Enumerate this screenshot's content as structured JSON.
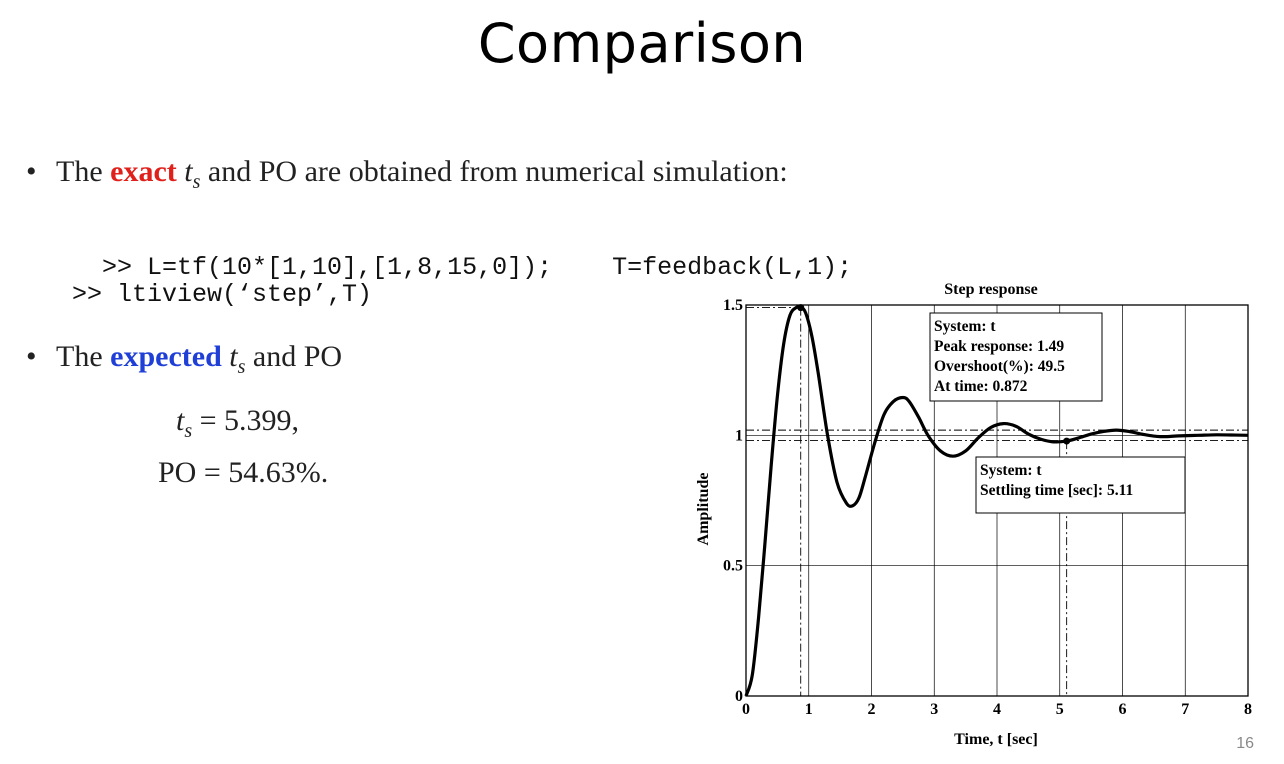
{
  "slide": {
    "title": "Comparison",
    "page_number": "16"
  },
  "bullets": {
    "b1": {
      "prefix": "The ",
      "keyword": "exact",
      "keyword_color": "#e0201a",
      "t_sym": "t",
      "t_sub": "s",
      "suffix": " and PO are obtained from numerical simulation:"
    },
    "b2": {
      "prefix": "The ",
      "keyword": "expected",
      "keyword_color": "#1f3fd6",
      "t_sym": "t",
      "t_sub": "s",
      "suffix": " and PO"
    }
  },
  "code": {
    "line1a": ">> L=tf(10*[1,10],[1,8,15,0]);",
    "line1b": "T=feedback(L,1);",
    "line2": ">> ltiview(‘step’,T)"
  },
  "formulas": {
    "ts_sym": "t",
    "ts_sub": "s",
    "ts_value": " = 5.399,",
    "po_label": "PO",
    "po_value": " = 54.63%."
  },
  "chart_data": {
    "type": "line",
    "title": "Step response",
    "xlabel": "Time, t [sec]",
    "ylabel": "Amplitude",
    "xlim": [
      0,
      8
    ],
    "ylim": [
      0,
      1.5
    ],
    "xticks": [
      0,
      1,
      2,
      3,
      4,
      5,
      6,
      7,
      8
    ],
    "yticks": [
      0,
      0.5,
      1,
      1.5
    ],
    "ytick_labels": [
      "0",
      "0.5",
      "1",
      "1.5"
    ],
    "grid": true,
    "series": [
      {
        "x": [
          0,
          0.1,
          0.2,
          0.3,
          0.4,
          0.5,
          0.6,
          0.7,
          0.8,
          0.872,
          0.95,
          1.05,
          1.15,
          1.3,
          1.45,
          1.6,
          1.7,
          1.8,
          1.9,
          2.05,
          2.2,
          2.35,
          2.5,
          2.6,
          2.75,
          2.9,
          3.1,
          3.3,
          3.5,
          3.7,
          3.9,
          4.1,
          4.3,
          4.5,
          4.7,
          4.9,
          5.11,
          5.3,
          5.5,
          5.7,
          5.9,
          6.1,
          6.3,
          6.6,
          6.9,
          7.2,
          7.5,
          7.8,
          8.0
        ],
        "y": [
          0,
          0.08,
          0.3,
          0.58,
          0.88,
          1.15,
          1.35,
          1.46,
          1.49,
          1.49,
          1.47,
          1.38,
          1.24,
          1.0,
          0.82,
          0.74,
          0.73,
          0.76,
          0.84,
          0.97,
          1.08,
          1.13,
          1.145,
          1.13,
          1.07,
          1.0,
          0.94,
          0.92,
          0.94,
          0.99,
          1.03,
          1.045,
          1.035,
          1.005,
          0.985,
          0.975,
          0.978,
          0.99,
          1.005,
          1.015,
          1.02,
          1.015,
          1.005,
          0.995,
          0.998,
          1.0,
          1.002,
          1.001,
          1.0
        ]
      }
    ],
    "settling_band": [
      0.98,
      1.02
    ],
    "markers": {
      "peak": {
        "x": 0.872,
        "y": 1.49
      },
      "settling": {
        "x": 5.11,
        "y": 0.978
      }
    },
    "annotations": [
      {
        "lines": [
          "System: t",
          "Peak response: 1.49",
          "Overshoot(%): 49.5",
          "At time: 0.872"
        ]
      },
      {
        "lines": [
          "System: t",
          "Settling time [sec]: 5.11"
        ]
      }
    ]
  }
}
